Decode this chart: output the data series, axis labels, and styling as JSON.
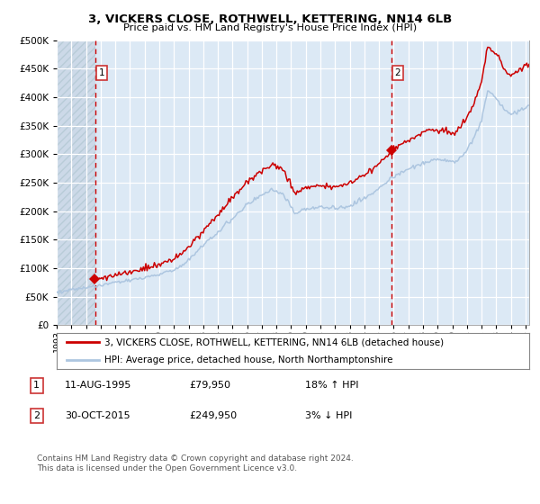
{
  "title": "3, VICKERS CLOSE, ROTHWELL, KETTERING, NN14 6LB",
  "subtitle": "Price paid vs. HM Land Registry's House Price Index (HPI)",
  "legend_line1": "3, VICKERS CLOSE, ROTHWELL, KETTERING, NN14 6LB (detached house)",
  "legend_line2": "HPI: Average price, detached house, North Northamptonshire",
  "sale1_date": "11-AUG-1995",
  "sale1_price": 79950,
  "sale1_hpi": "18% ↑ HPI",
  "sale2_date": "30-OCT-2015",
  "sale2_price": 249950,
  "sale2_hpi": "3% ↓ HPI",
  "footnote": "Contains HM Land Registry data © Crown copyright and database right 2024.\nThis data is licensed under the Open Government Licence v3.0.",
  "hpi_color": "#adc6e0",
  "price_color": "#cc0000",
  "dashed_color": "#cc0000",
  "bg_color": "#dce9f5",
  "grid_color": "#ffffff",
  "ylim_max": 500000,
  "ylim_min": 0,
  "sale1_year": 1995.62,
  "sale2_year": 2015.83,
  "xmin": 1993.0,
  "xmax": 2025.25
}
